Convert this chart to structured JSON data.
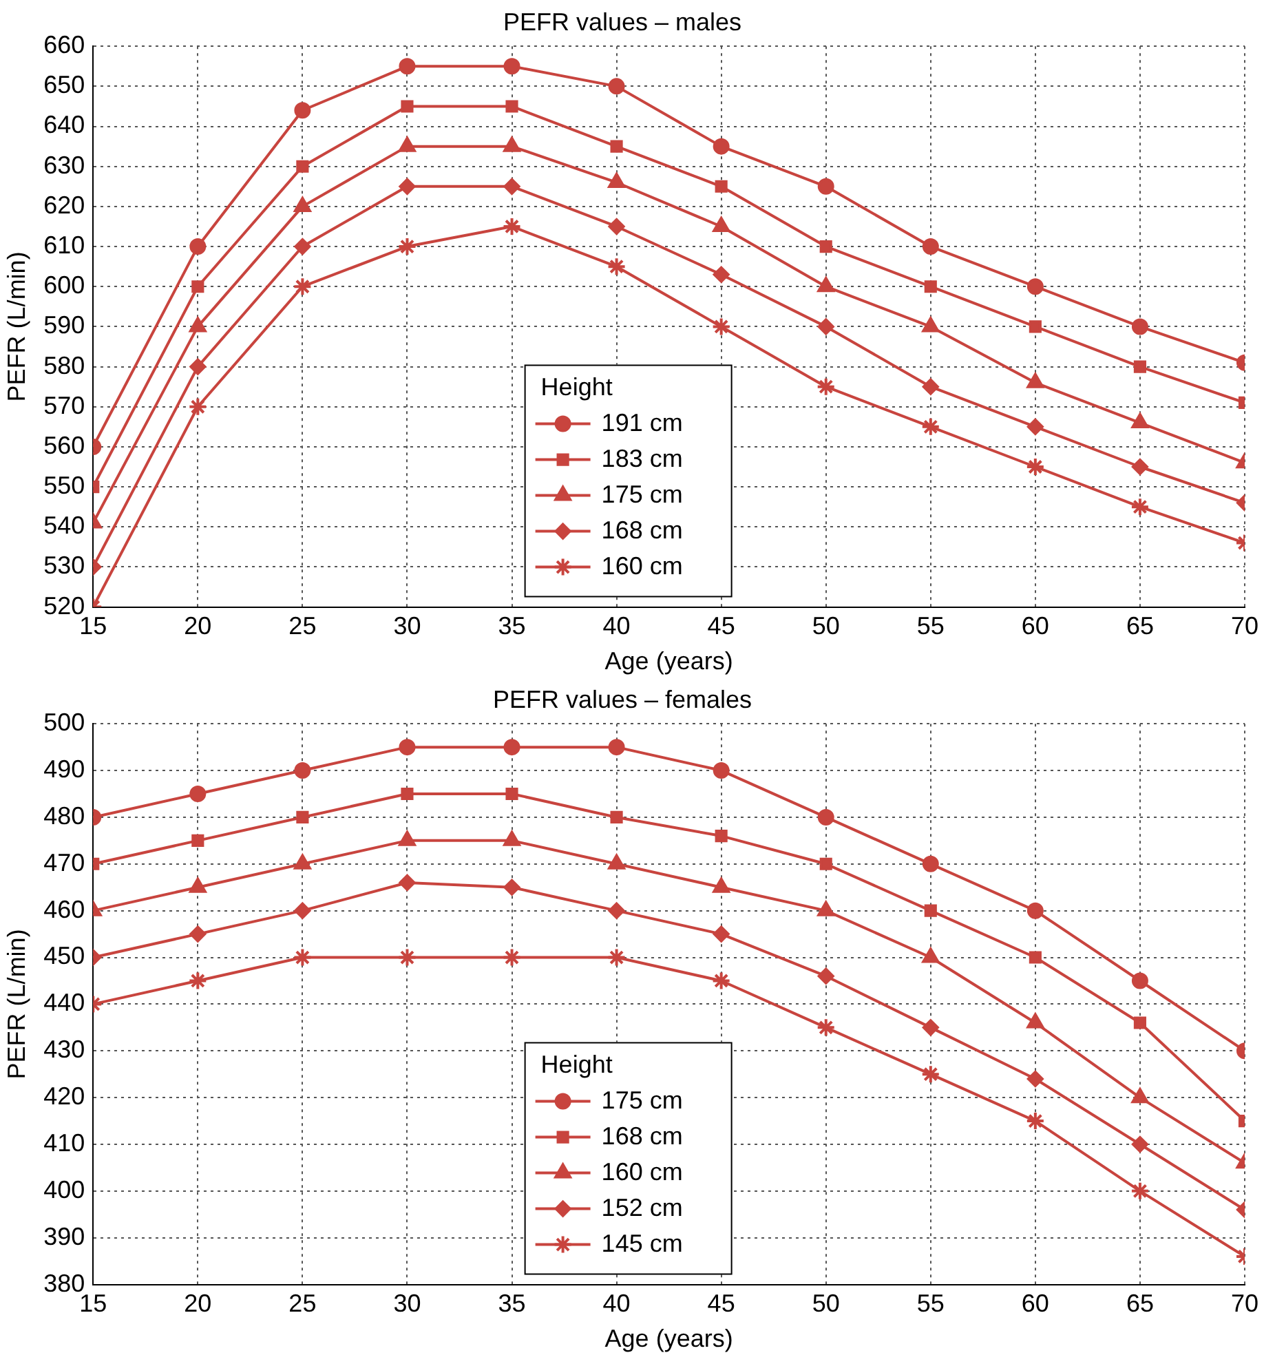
{
  "chart_data": [
    {
      "type": "line",
      "title": "PEFR values – males",
      "xlabel": "Age (years)",
      "ylabel": "PEFR (L/min)",
      "legend_title": "Height",
      "legend": "bottom",
      "grid": true,
      "line_style": "solid",
      "x": [
        15,
        20,
        25,
        30,
        35,
        40,
        45,
        50,
        55,
        60,
        65,
        70
      ],
      "xlim": [
        15,
        70
      ],
      "xticks": [
        15,
        20,
        25,
        30,
        35,
        40,
        45,
        50,
        55,
        60,
        65,
        70
      ],
      "ylim": [
        520,
        660
      ],
      "yticks": [
        520,
        530,
        540,
        550,
        560,
        570,
        580,
        590,
        600,
        610,
        620,
        630,
        640,
        650,
        660
      ],
      "series": [
        {
          "name": "191 cm",
          "color": "#c8443e",
          "marker": "circle",
          "values": [
            560,
            610,
            644,
            655,
            655,
            650,
            635,
            625,
            610,
            600,
            590,
            581
          ]
        },
        {
          "name": "183 cm",
          "color": "#c8443e",
          "marker": "square",
          "values": [
            550,
            600,
            630,
            645,
            645,
            635,
            625,
            610,
            600,
            590,
            580,
            571
          ]
        },
        {
          "name": "175 cm",
          "color": "#c8443e",
          "marker": "triangle",
          "values": [
            541,
            590,
            620,
            635,
            635,
            626,
            615,
            600,
            590,
            576,
            566,
            556
          ]
        },
        {
          "name": "168 cm",
          "color": "#c8443e",
          "marker": "diamond",
          "values": [
            530,
            580,
            610,
            625,
            625,
            615,
            603,
            590,
            575,
            565,
            555,
            546
          ]
        },
        {
          "name": "160 cm",
          "color": "#c8443e",
          "marker": "cross",
          "values": [
            520,
            570,
            600,
            610,
            615,
            605,
            590,
            575,
            565,
            555,
            545,
            536
          ]
        }
      ]
    },
    {
      "type": "line",
      "title": "PEFR values – females",
      "xlabel": "Age (years)",
      "ylabel": "PEFR (L/min)",
      "legend_title": "Height",
      "legend": "bottom",
      "grid": true,
      "line_style": "solid",
      "x": [
        15,
        20,
        25,
        30,
        35,
        40,
        45,
        50,
        55,
        60,
        65,
        70
      ],
      "xlim": [
        15,
        70
      ],
      "xticks": [
        15,
        20,
        25,
        30,
        35,
        40,
        45,
        50,
        55,
        60,
        65,
        70
      ],
      "ylim": [
        380,
        500
      ],
      "yticks": [
        380,
        390,
        400,
        410,
        420,
        430,
        440,
        450,
        460,
        470,
        480,
        490,
        500
      ],
      "series": [
        {
          "name": "175 cm",
          "color": "#c8443e",
          "marker": "circle",
          "values": [
            480,
            485,
            490,
            495,
            495,
            495,
            490,
            480,
            470,
            460,
            445,
            430
          ]
        },
        {
          "name": "168 cm",
          "color": "#c8443e",
          "marker": "square",
          "values": [
            470,
            475,
            480,
            485,
            485,
            480,
            476,
            470,
            460,
            450,
            436,
            415
          ]
        },
        {
          "name": "160 cm",
          "color": "#c8443e",
          "marker": "triangle",
          "values": [
            460,
            465,
            470,
            475,
            475,
            470,
            465,
            460,
            450,
            436,
            420,
            406
          ]
        },
        {
          "name": "152 cm",
          "color": "#c8443e",
          "marker": "diamond",
          "values": [
            450,
            455,
            460,
            466,
            465,
            460,
            455,
            446,
            435,
            424,
            410,
            396
          ]
        },
        {
          "name": "145 cm",
          "color": "#c8443e",
          "marker": "cross",
          "values": [
            440,
            445,
            450,
            450,
            450,
            450,
            445,
            435,
            425,
            415,
            400,
            386
          ]
        }
      ]
    }
  ]
}
